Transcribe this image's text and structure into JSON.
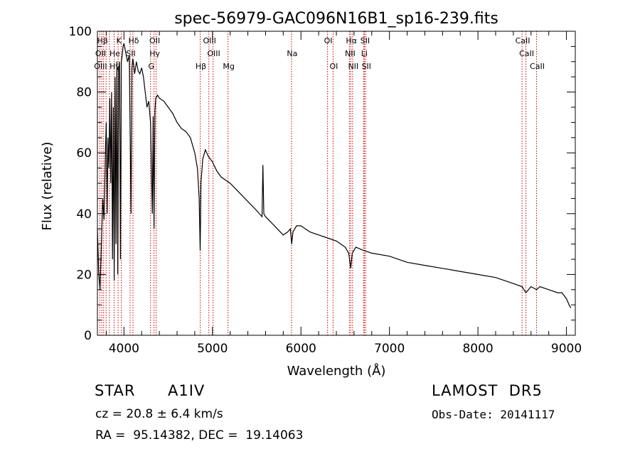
{
  "chart_data": {
    "type": "line",
    "title": "spec-56979-GAC096N16B1_sp16-239.fits",
    "xlabel": "Wavelength (Å)",
    "ylabel": "Flux (relative)",
    "xlim": [
      3700,
      9100
    ],
    "ylim": [
      0,
      100
    ],
    "xticks": [
      4000,
      5000,
      6000,
      7000,
      8000,
      9000
    ],
    "yticks": [
      0,
      20,
      40,
      60,
      80,
      100
    ],
    "grid": false,
    "line_color": "#000000",
    "marker_color": "#cc0000",
    "series": [
      {
        "x": [
          3700,
          3715,
          3730,
          3745,
          3760,
          3775,
          3790,
          3800,
          3810,
          3820,
          3830,
          3840,
          3850,
          3860,
          3870,
          3880,
          3890,
          3900,
          3910,
          3920,
          3930,
          3940,
          3950,
          3960,
          3970,
          3980,
          3990,
          4000,
          4020,
          4040,
          4060,
          4080,
          4090,
          4100,
          4110,
          4120,
          4140,
          4160,
          4180,
          4200,
          4220,
          4240,
          4260,
          4280,
          4300,
          4320,
          4330,
          4340,
          4350,
          4360,
          4380,
          4400,
          4450,
          4500,
          4550,
          4600,
          4650,
          4700,
          4750,
          4800,
          4830,
          4850,
          4861,
          4870,
          4890,
          4920,
          4950,
          5000,
          5050,
          5100,
          5200,
          5300,
          5400,
          5500,
          5560,
          5570,
          5580,
          5600,
          5700,
          5800,
          5850,
          5880,
          5895,
          5910,
          5950,
          6000,
          6100,
          6200,
          6300,
          6400,
          6450,
          6500,
          6540,
          6562,
          6580,
          6620,
          6700,
          6800,
          7000,
          7200,
          7400,
          7600,
          7800,
          8000,
          8200,
          8400,
          8498,
          8542,
          8600,
          8662,
          8700,
          8800,
          8900,
          8950,
          9000,
          9030,
          9050
        ],
        "y": [
          35,
          20,
          15,
          30,
          45,
          38,
          60,
          70,
          40,
          65,
          55,
          78,
          50,
          80,
          25,
          75,
          18,
          85,
          30,
          90,
          20,
          87,
          90,
          25,
          90,
          92,
          95,
          96,
          93,
          90,
          92,
          40,
          88,
          91,
          89,
          86,
          90,
          87,
          86,
          88,
          85,
          80,
          75,
          77,
          70,
          40,
          72,
          35,
          74,
          78,
          79,
          78,
          77,
          75,
          73,
          70,
          68,
          67,
          65,
          60,
          55,
          45,
          28,
          50,
          58,
          61,
          59,
          57,
          54,
          52,
          50,
          47,
          44,
          41,
          39,
          56,
          40,
          39,
          36,
          33,
          34,
          35,
          30,
          34,
          36,
          36,
          34,
          33,
          32,
          31,
          30,
          29,
          27,
          22,
          27,
          29,
          28,
          27,
          26,
          24,
          23,
          22,
          21,
          20,
          19,
          17,
          16,
          14,
          16,
          15,
          16,
          15,
          14,
          14,
          12,
          10,
          9
        ]
      }
    ],
    "line_markers": [
      {
        "label": "Hβ",
        "wave": 3750,
        "row": 1
      },
      {
        "label": "K",
        "wave": 3934,
        "row": 1
      },
      {
        "label": "Hδ",
        "wave": 4102,
        "row": 1
      },
      {
        "label": "OII",
        "wave": 4340,
        "row": 1
      },
      {
        "label": "OIII",
        "wave": 4959,
        "row": 1
      },
      {
        "label": "OI",
        "wave": 6300,
        "row": 1
      },
      {
        "label": "Hα",
        "wave": 6562,
        "row": 1
      },
      {
        "label": "SII",
        "wave": 6717,
        "row": 1
      },
      {
        "label": "CaII",
        "wave": 8498,
        "row": 1
      },
      {
        "label": "OII",
        "wave": 3727,
        "row": 2
      },
      {
        "label": "He",
        "wave": 3889,
        "row": 2
      },
      {
        "label": "SII",
        "wave": 4070,
        "row": 2
      },
      {
        "label": "Hγ",
        "wave": 4340,
        "row": 2
      },
      {
        "label": "OIII",
        "wave": 5007,
        "row": 2
      },
      {
        "label": "Na",
        "wave": 5893,
        "row": 2
      },
      {
        "label": "NII",
        "wave": 6548,
        "row": 2
      },
      {
        "label": "Li",
        "wave": 6708,
        "row": 2
      },
      {
        "label": "CaII",
        "wave": 8542,
        "row": 2
      },
      {
        "label": "OIII",
        "wave": 3727,
        "row": 3
      },
      {
        "label": "Hγ",
        "wave": 3889,
        "row": 3
      },
      {
        "label": "G",
        "wave": 4300,
        "row": 3
      },
      {
        "label": "Hβ",
        "wave": 4861,
        "row": 3
      },
      {
        "label": "Mg",
        "wave": 5175,
        "row": 3
      },
      {
        "label": "OI",
        "wave": 6363,
        "row": 3
      },
      {
        "label": "NII",
        "wave": 6583,
        "row": 3
      },
      {
        "label": "SII",
        "wave": 6731,
        "row": 3
      },
      {
        "label": "CaII",
        "wave": 8662,
        "row": 3
      }
    ],
    "marker_lines": [
      3727,
      3750,
      3770,
      3798,
      3835,
      3889,
      3934,
      3970,
      4070,
      4102,
      4300,
      4340,
      4363,
      4861,
      4959,
      5007,
      5175,
      5893,
      6300,
      6363,
      6548,
      6562,
      6583,
      6708,
      6717,
      6731,
      8498,
      8542,
      8662
    ]
  },
  "info": {
    "object_class": "STAR",
    "subclass": "A1IV",
    "survey": "LAMOST  DR5",
    "redshift": "cz = 20.8 ± 6.4 km/s",
    "obs_date": "Obs-Date: 20141117",
    "coords": "RA =  95.14382, DEC =  19.14063"
  }
}
